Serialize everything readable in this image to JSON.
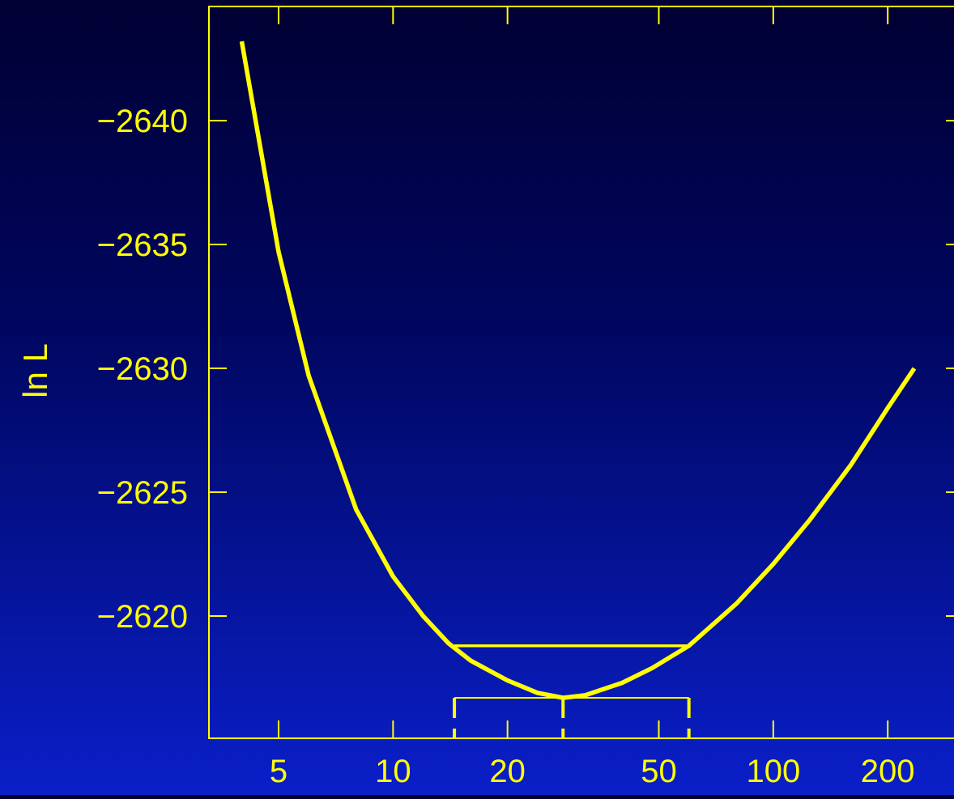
{
  "colors": {
    "foreground": "#ffff00",
    "background_top": "#000033",
    "background_bottom": "#0a1fc9"
  },
  "chart_data": {
    "type": "line",
    "x_scale": "log",
    "xlabel": "",
    "ylabel": "ln L",
    "xlim": [
      3.5,
      280
    ],
    "ylim": [
      -2645,
      -2615
    ],
    "grid": false,
    "legend": "none",
    "x_ticks": [
      5,
      10,
      20,
      50,
      100,
      200
    ],
    "x_tick_labels": [
      "5",
      "10",
      "20",
      "50",
      "100",
      "200"
    ],
    "y_ticks": [
      -2620,
      -2625,
      -2630,
      -2635,
      -2640
    ],
    "y_tick_labels": [
      "−2620",
      "−2625",
      "−2630",
      "−2635",
      "−2640"
    ],
    "series": [
      {
        "x": [
          4,
          5,
          6,
          8,
          10,
          12,
          14,
          16,
          20,
          24,
          28,
          32,
          40,
          48,
          60,
          80,
          100,
          125,
          160,
          200,
          235
        ],
        "y": [
          -2643.2,
          -2634.7,
          -2629.7,
          -2624.3,
          -2621.6,
          -2620.0,
          -2618.9,
          -2618.2,
          -2617.4,
          -2616.9,
          -2616.7,
          -2616.8,
          -2617.3,
          -2617.9,
          -2618.8,
          -2620.5,
          -2622.1,
          -2623.9,
          -2626.1,
          -2628.4,
          -2630.0
        ]
      }
    ],
    "annotations": {
      "max_x": 28,
      "max_y": -2616.7,
      "interval_low_x": 14.5,
      "interval_high_x": 60,
      "interval_y": -2618.8
    }
  }
}
